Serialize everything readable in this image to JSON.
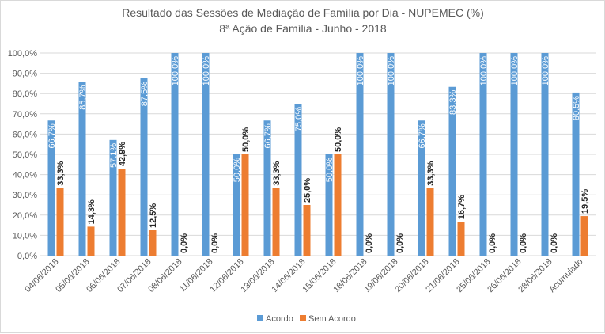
{
  "chart_data": {
    "type": "bar",
    "title": "Resultado das Sessões de Mediação de Família por Dia - NUPEMEC (%)",
    "subtitle": "8ª Ação de Família -  Junho  - 2018",
    "categories": [
      "04/06/2018",
      "05/06/2018",
      "06/06/2018",
      "07/06/2018",
      "08/06/2018",
      "11/06/2018",
      "12/06/2018",
      "13/06/2018",
      "14/06/2018",
      "15/06/2018",
      "18/06/2018",
      "19/06/2018",
      "20/06/2018",
      "21/06/2018",
      "25/06/2018",
      "26/06/2018",
      "28/06/2018",
      "Acumulado"
    ],
    "series": [
      {
        "name": "Acordo",
        "color": "#5b9bd5",
        "values": [
          66.7,
          85.7,
          57.1,
          87.5,
          100.0,
          100.0,
          50.0,
          66.7,
          75.0,
          50.0,
          100.0,
          100.0,
          66.7,
          83.3,
          100.0,
          100.0,
          100.0,
          80.5
        ],
        "labels": [
          "66,7%",
          "85,7%",
          "57,1%",
          "87,5%",
          "100,0%",
          "100,0%",
          "50,0%",
          "66,7%",
          "75,0%",
          "50,0%",
          "100,0%",
          "100,0%",
          "66,7%",
          "83,3%",
          "100,0%",
          "100,0%",
          "100,0%",
          "80,5%"
        ]
      },
      {
        "name": "Sem Acordo",
        "color": "#ed7d31",
        "values": [
          33.3,
          14.3,
          42.9,
          12.5,
          0.0,
          0.0,
          50.0,
          33.3,
          25.0,
          50.0,
          0.0,
          0.0,
          33.3,
          16.7,
          0.0,
          0.0,
          0.0,
          19.5
        ],
        "labels": [
          "33,3%",
          "14,3%",
          "42,9%",
          "12,5%",
          "0,0%",
          "0,0%",
          "50,0%",
          "33,3%",
          "25,0%",
          "50,0%",
          "0,0%",
          "0,0%",
          "33,3%",
          "16,7%",
          "0,0%",
          "0,0%",
          "0,0%",
          "19,5%"
        ]
      }
    ],
    "ylim": [
      0,
      100
    ],
    "y_ticks": [
      0,
      10,
      20,
      30,
      40,
      50,
      60,
      70,
      80,
      90,
      100
    ],
    "y_tick_labels": [
      "0,0%",
      "10,0%",
      "20,0%",
      "30,0%",
      "40,0%",
      "50,0%",
      "60,0%",
      "70,0%",
      "80,0%",
      "90,0%",
      "100,0%"
    ],
    "grid": true,
    "gridline_color": "#d9d9d9",
    "legend_position": "bottom"
  }
}
